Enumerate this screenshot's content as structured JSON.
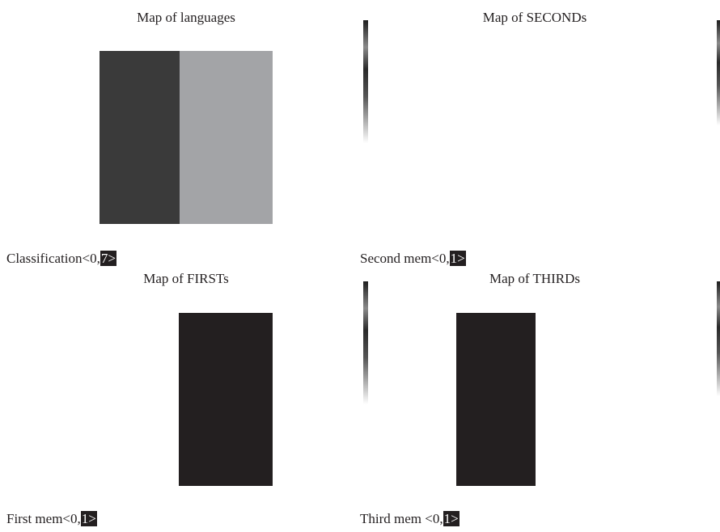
{
  "panels": [
    {
      "title": "Map of languages",
      "caption": "Classification<0,",
      "caption_highlight": "7>"
    },
    {
      "title": "Map of SECONDs",
      "caption": "Second mem<0,",
      "caption_highlight": "1>"
    },
    {
      "title": "Map of FIRSTs",
      "caption": "First mem<0,",
      "caption_highlight": "1>"
    },
    {
      "title": "Map of THIRDs",
      "caption": "Third mem <0,",
      "caption_highlight": "1>"
    }
  ]
}
